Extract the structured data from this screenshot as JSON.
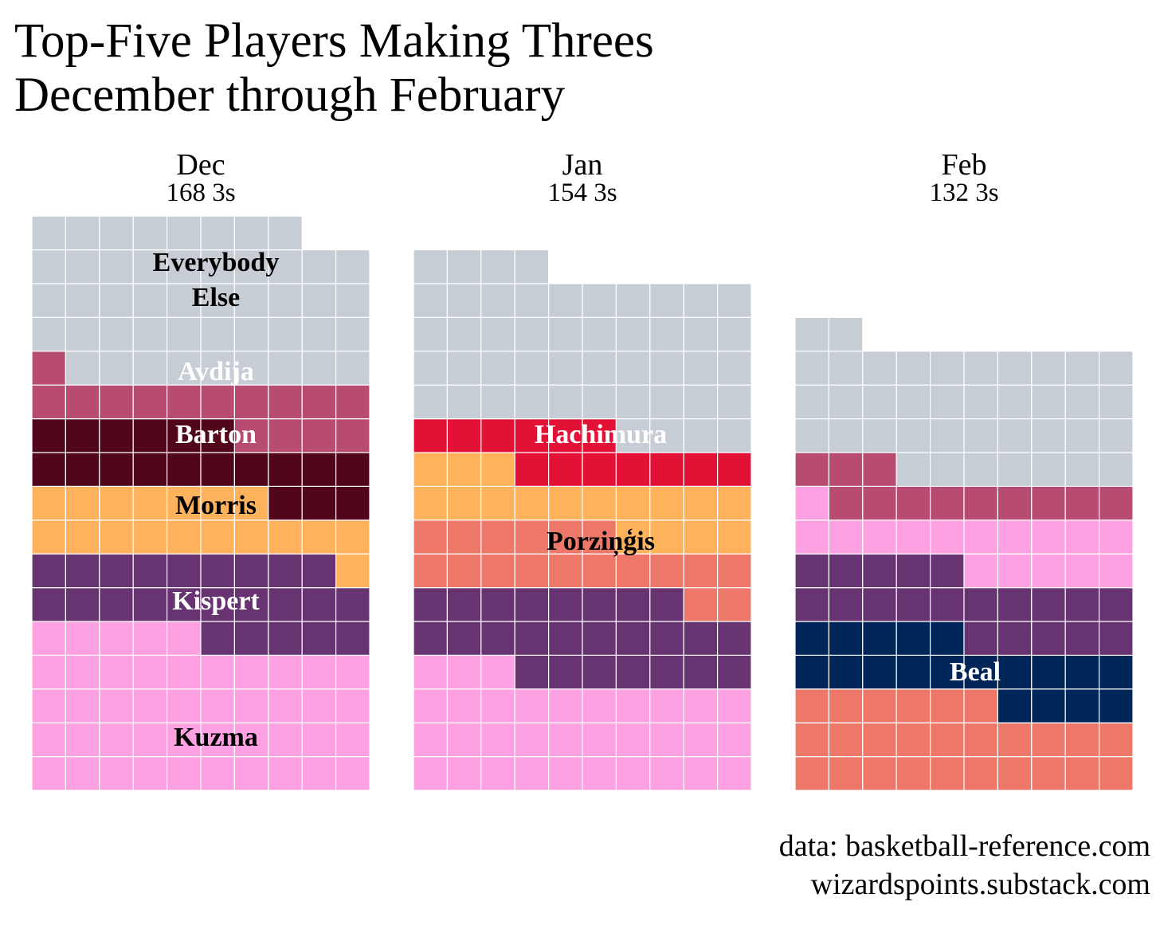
{
  "title": {
    "line1": "Top-Five Players Making Threes",
    "line2": "December through February"
  },
  "credits": {
    "line1": "data: basketball-reference.com",
    "line2": "wizardspoints.substack.com"
  },
  "colors": {
    "Everybody Else": "#c6cdd4",
    "Avdija": "#b84b72",
    "Barton": "#52061c",
    "Morris": "#fdb25b",
    "Kispert": "#673371",
    "Kuzma": "#fda1e2",
    "Hachimura": "#e31136",
    "Porziņģis": "#ed786a",
    "Beal": "#002659"
  },
  "chart_data": {
    "type": "waffle",
    "unit": "3s",
    "columns_per_row": 10,
    "panels": [
      {
        "month": "Dec",
        "total_label": "168 3s",
        "total": 168,
        "segments": [
          {
            "player": "Kuzma",
            "value": 45,
            "label": "Kuzma",
            "label_color": "#000000"
          },
          {
            "player": "Kispert",
            "value": 24,
            "label": "Kispert",
            "label_color": "#ffffff"
          },
          {
            "player": "Morris",
            "value": 18,
            "label": "Morris",
            "label_color": "#000000"
          },
          {
            "player": "Barton",
            "value": 19,
            "label": "Barton",
            "label_color": "#ffffff"
          },
          {
            "player": "Avdija",
            "value": 15,
            "label": "Avdija",
            "label_color": "#ffffff"
          },
          {
            "player": "Everybody Else",
            "value": 47,
            "label": "Everybody\nElse",
            "label_color": "#000000"
          }
        ]
      },
      {
        "month": "Jan",
        "total_label": "154 3s",
        "total": 154,
        "segments": [
          {
            "player": "Kuzma",
            "value": 33,
            "label": "",
            "label_color": "#000000"
          },
          {
            "player": "Kispert",
            "value": 25,
            "label": "",
            "label_color": "#ffffff"
          },
          {
            "player": "Porziņģis",
            "value": 18,
            "label": "Porziņģis",
            "label_color": "#000000"
          },
          {
            "player": "Morris",
            "value": 17,
            "label": "",
            "label_color": "#000000"
          },
          {
            "player": "Hachimura",
            "value": 13,
            "label": "Hachimura",
            "label_color": "#ffffff"
          },
          {
            "player": "Everybody Else",
            "value": 48,
            "label": "",
            "label_color": "#000000"
          }
        ]
      },
      {
        "month": "Feb",
        "total_label": "132 3s",
        "total": 132,
        "segments": [
          {
            "player": "Porziņģis",
            "value": 26,
            "label": "",
            "label_color": "#000000"
          },
          {
            "player": "Beal",
            "value": 19,
            "label": "Beal",
            "label_color": "#ffffff"
          },
          {
            "player": "Kispert",
            "value": 20,
            "label": "",
            "label_color": "#ffffff"
          },
          {
            "player": "Kuzma",
            "value": 16,
            "label": "",
            "label_color": "#000000"
          },
          {
            "player": "Avdija",
            "value": 12,
            "label": "",
            "label_color": "#ffffff"
          },
          {
            "player": "Everybody Else",
            "value": 39,
            "label": "",
            "label_color": "#000000"
          }
        ]
      }
    ]
  }
}
